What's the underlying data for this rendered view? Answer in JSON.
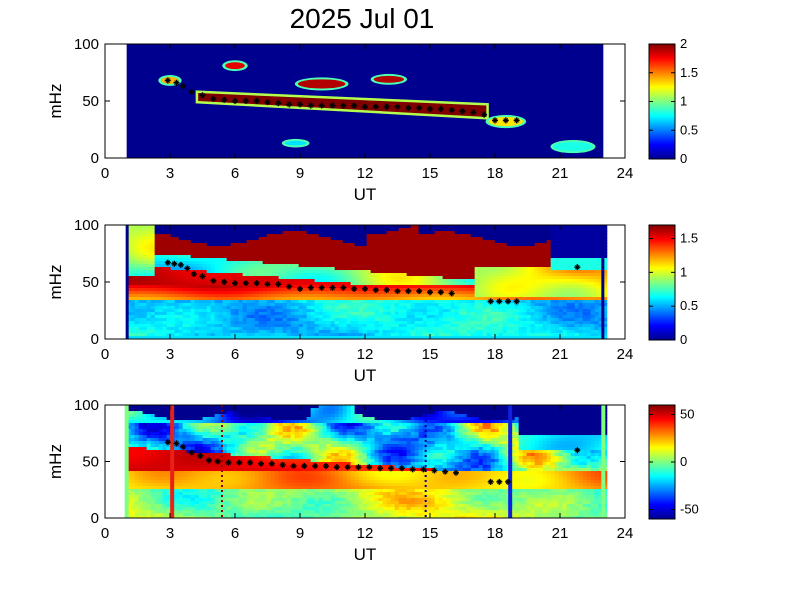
{
  "figure": {
    "title": "2025 Jul 01"
  },
  "chart_data": [
    {
      "type": "heatmap",
      "panel": 1,
      "xlabel": "UT",
      "ylabel": "mHz",
      "xlim": [
        0,
        24
      ],
      "ylim": [
        0,
        100
      ],
      "xticks": [
        "0",
        "3",
        "6",
        "9",
        "12",
        "15",
        "18",
        "21",
        "24"
      ],
      "yticks": [
        "0",
        "50",
        "100"
      ],
      "data_x_range": [
        1,
        23
      ],
      "colormap": "jet",
      "colorbar": {
        "range": [
          0,
          2
        ],
        "ticks": [
          "0",
          "0.5",
          "1",
          "1.5",
          "2"
        ]
      },
      "background_color": "#00008f",
      "features": [
        {
          "kind": "band",
          "x_start": 4.3,
          "x_end": 17.6,
          "top_start": 57,
          "top_end": 46,
          "bottom_start": 50,
          "bottom_end": 36,
          "level": 2
        },
        {
          "kind": "blob",
          "x": 6.0,
          "y": 81,
          "rx": 0.45,
          "ry": 3,
          "level": 1.8
        },
        {
          "kind": "blob",
          "x": 10.0,
          "y": 65,
          "rx": 1.1,
          "ry": 4,
          "level": 1.9
        },
        {
          "kind": "blob",
          "x": 13.1,
          "y": 69,
          "rx": 0.7,
          "ry": 3,
          "level": 1.9
        },
        {
          "kind": "blob",
          "x": 3.0,
          "y": 68,
          "rx": 0.4,
          "ry": 3,
          "level": 1.4
        },
        {
          "kind": "blob",
          "x": 18.5,
          "y": 32,
          "rx": 0.8,
          "ry": 4,
          "level": 1.3
        },
        {
          "kind": "blob",
          "x": 21.6,
          "y": 10,
          "rx": 0.9,
          "ry": 4,
          "level": 0.8
        },
        {
          "kind": "blob",
          "x": 8.8,
          "y": 13,
          "rx": 0.5,
          "ry": 2,
          "level": 0.7
        }
      ],
      "markers": {
        "x": [
          2.9,
          3.3,
          3.6,
          4.0,
          4.5,
          5.0,
          5.5,
          6.0,
          6.5,
          7.0,
          7.5,
          8.0,
          8.5,
          9.0,
          9.5,
          10.0,
          10.5,
          11.0,
          11.5,
          12.0,
          12.5,
          13.0,
          13.5,
          14.0,
          14.5,
          15.0,
          15.5,
          16.0,
          16.5,
          17.0,
          17.5,
          18.0,
          18.5,
          19.0
        ],
        "y": [
          68,
          66,
          63,
          58,
          55,
          52,
          51,
          50,
          50,
          50,
          49,
          48,
          47,
          47,
          46,
          46,
          46,
          46,
          46,
          45,
          45,
          45,
          45,
          44,
          44,
          43,
          43,
          42,
          41,
          40,
          38,
          33,
          33,
          33
        ]
      }
    },
    {
      "type": "heatmap",
      "panel": 2,
      "xlabel": "UT",
      "ylabel": "mHz",
      "xlim": [
        0,
        24
      ],
      "ylim": [
        0,
        100
      ],
      "xticks": [
        "0",
        "3",
        "6",
        "9",
        "12",
        "15",
        "18",
        "21",
        "24"
      ],
      "yticks": [
        "0",
        "50",
        "100"
      ],
      "data_x_range": [
        1,
        23
      ],
      "colormap": "jet",
      "colorbar": {
        "range": [
          0,
          1.7
        ],
        "ticks": [
          "0",
          "0.5",
          "1",
          "1.5"
        ]
      },
      "markers": {
        "x": [
          2.9,
          3.2,
          3.5,
          3.8,
          4.1,
          4.5,
          5.0,
          5.5,
          6.0,
          6.5,
          7.0,
          7.5,
          8.0,
          8.5,
          9.0,
          9.5,
          10.0,
          10.5,
          11.0,
          11.5,
          12.0,
          12.5,
          13.0,
          13.5,
          14.0,
          14.5,
          15.0,
          15.5,
          16.0,
          17.8,
          18.2,
          18.6,
          19.0,
          21.8
        ],
        "y": [
          67,
          66,
          65,
          62,
          57,
          55,
          51,
          50,
          49,
          49,
          49,
          48,
          48,
          46,
          44,
          45,
          45,
          45,
          45,
          44,
          44,
          43,
          43,
          42,
          42,
          42,
          41,
          41,
          40,
          33,
          33,
          33,
          33,
          63
        ]
      }
    },
    {
      "type": "heatmap",
      "panel": 3,
      "xlabel": "UT",
      "ylabel": "mHz",
      "xlim": [
        0,
        24
      ],
      "ylim": [
        0,
        100
      ],
      "xticks": [
        "0",
        "3",
        "6",
        "9",
        "12",
        "15",
        "18",
        "21",
        "24"
      ],
      "yticks": [
        "0",
        "50",
        "100"
      ],
      "data_x_range": [
        1,
        23
      ],
      "colormap": "jet",
      "colorbar": {
        "range": [
          -60,
          60
        ],
        "ticks": [
          "-50",
          "0",
          "50"
        ]
      },
      "vertical_lines": [
        {
          "x": 3.1,
          "color": "#e8201a",
          "style": "solid"
        },
        {
          "x": 18.7,
          "color": "#1020e0",
          "style": "solid"
        },
        {
          "x": 5.4,
          "color": "#900000",
          "style": "dotted"
        },
        {
          "x": 14.8,
          "color": "#00008f",
          "style": "dotted"
        }
      ],
      "markers": {
        "x": [
          2.9,
          3.3,
          3.6,
          4.0,
          4.4,
          4.8,
          5.2,
          5.7,
          6.2,
          6.7,
          7.2,
          7.7,
          8.2,
          8.7,
          9.2,
          9.7,
          10.2,
          10.7,
          11.2,
          11.7,
          12.2,
          12.7,
          13.2,
          13.7,
          14.2,
          14.7,
          15.2,
          15.7,
          16.2,
          17.8,
          18.2,
          18.6,
          21.8
        ],
        "y": [
          67,
          66,
          63,
          58,
          55,
          51,
          50,
          49,
          49,
          49,
          48,
          48,
          47,
          46,
          46,
          46,
          46,
          45,
          45,
          45,
          45,
          44,
          44,
          44,
          43,
          43,
          42,
          41,
          40,
          32,
          32,
          32,
          60
        ]
      }
    }
  ]
}
